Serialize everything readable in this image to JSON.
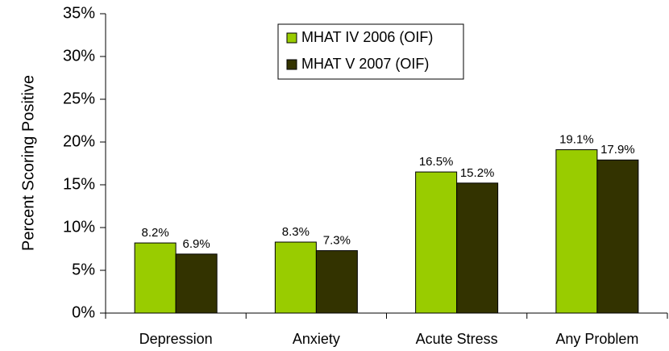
{
  "chart_data": {
    "type": "bar",
    "y_label": "Percent Scoring Positive",
    "categories": [
      "Depression",
      "Anxiety",
      "Acute Stress",
      "Any Problem"
    ],
    "series": [
      {
        "name": "MHAT IV 2006 (OIF)",
        "color": "#99cc00",
        "values": [
          8.2,
          8.3,
          16.5,
          19.1
        ],
        "value_labels": [
          "8.2%",
          "8.3%",
          "16.5%",
          "19.1%"
        ]
      },
      {
        "name": "MHAT V 2007 (OIF)",
        "color": "#333300",
        "values": [
          6.9,
          7.3,
          15.2,
          17.9
        ],
        "value_labels": [
          "6.9%",
          "7.3%",
          "15.2%",
          "17.9%"
        ]
      }
    ],
    "ylim": [
      0,
      35
    ],
    "yticks": [
      {
        "value": 0,
        "label": "0%"
      },
      {
        "value": 5,
        "label": "5%"
      },
      {
        "value": 10,
        "label": "10%"
      },
      {
        "value": 15,
        "label": "15%"
      },
      {
        "value": 20,
        "label": "20%"
      },
      {
        "value": 25,
        "label": "25%"
      },
      {
        "value": 30,
        "label": "30%"
      },
      {
        "value": 35,
        "label": "35%"
      }
    ],
    "grid": false
  }
}
